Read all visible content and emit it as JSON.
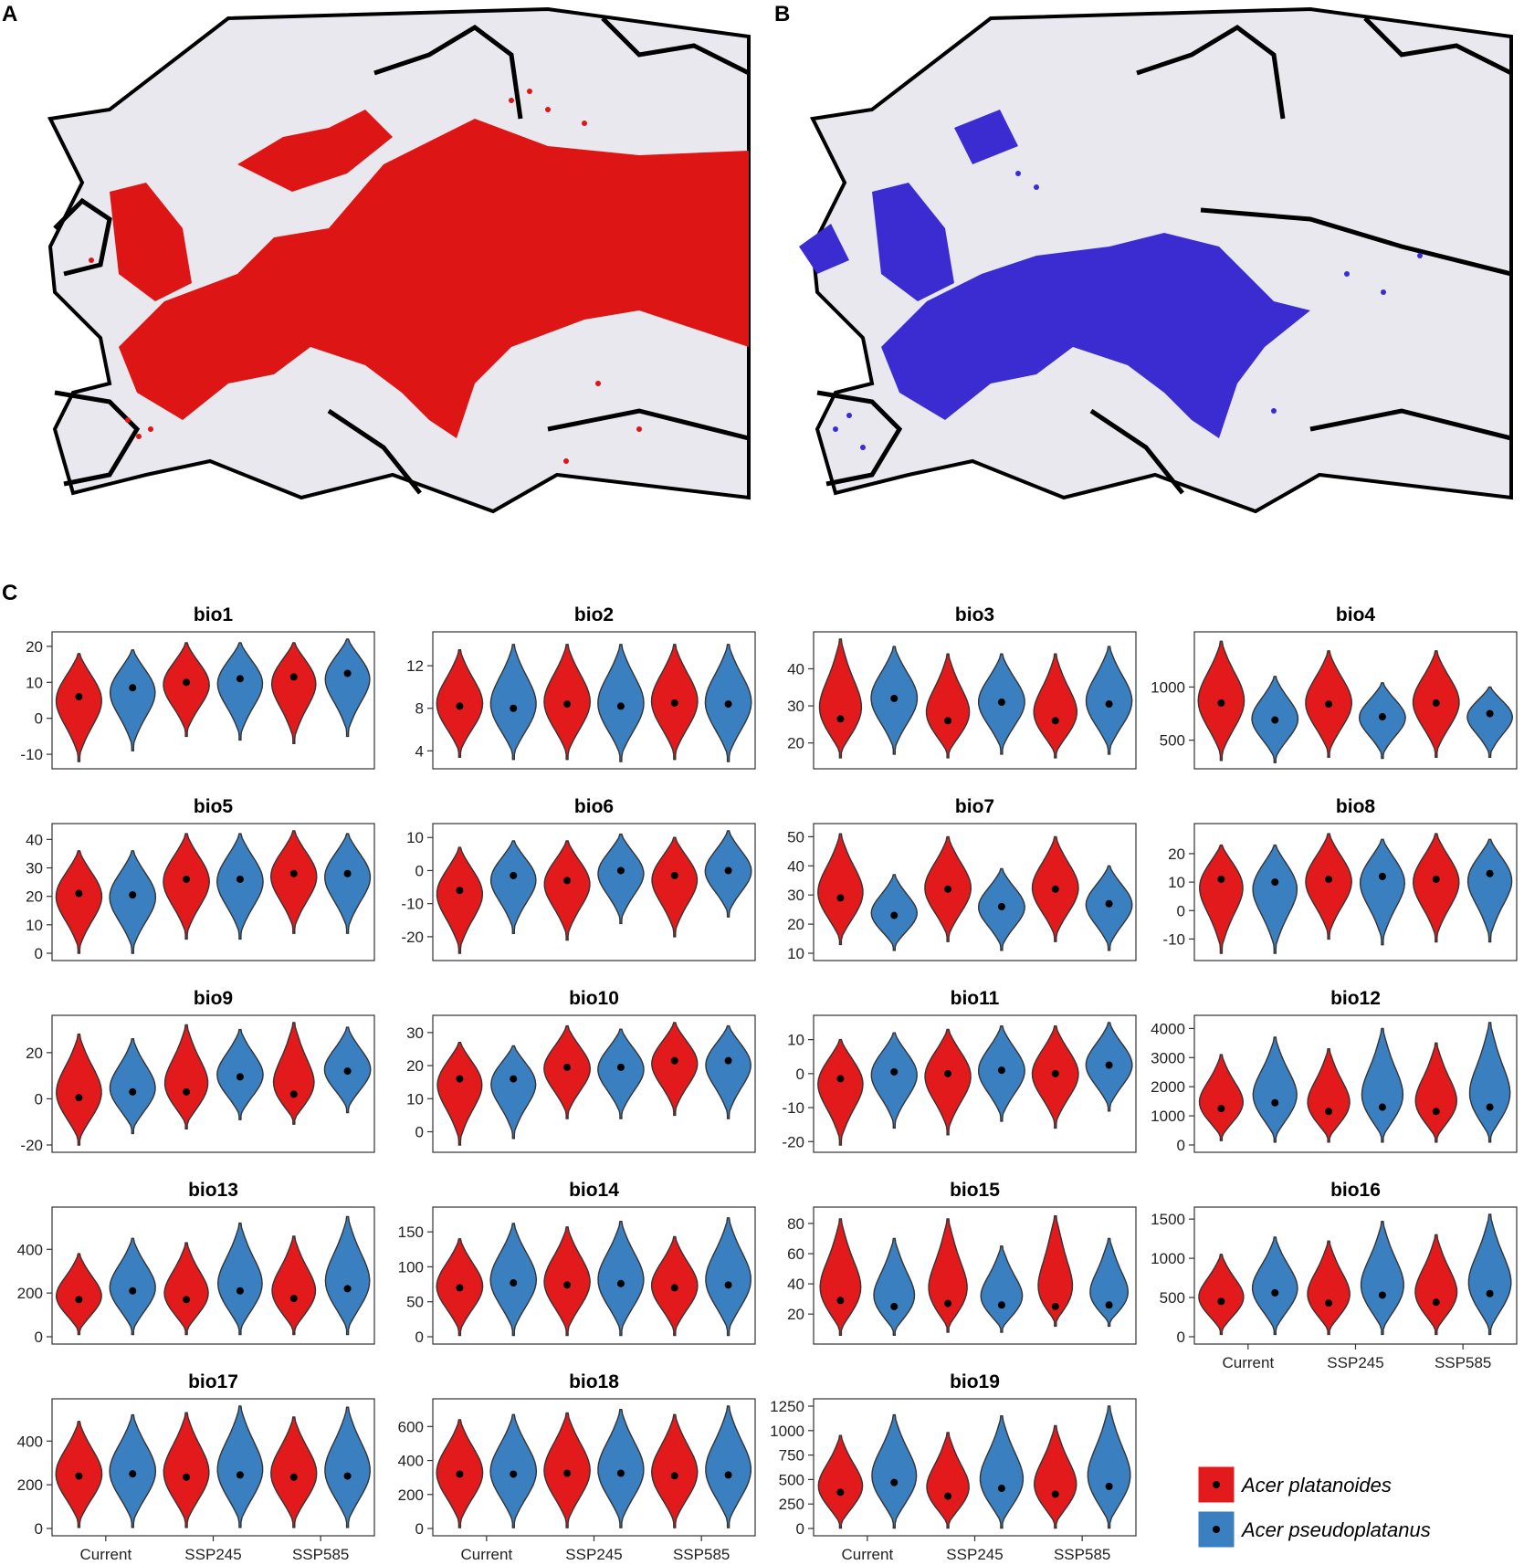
{
  "panels": {
    "a": "A",
    "b": "B",
    "c": "C"
  },
  "maps": [
    {
      "panel": "A",
      "species": "Acer platanoides",
      "fill": "#dd1515",
      "background": "#e9e8ef",
      "border": "#000000"
    },
    {
      "panel": "B",
      "species": "Acer pseudoplatanus",
      "fill": "#3a2cd0",
      "background": "#e9e8ef",
      "border": "#000000"
    }
  ],
  "chart_data": {
    "type": "violin",
    "categories": [
      "Current",
      "SSP245",
      "SSP585"
    ],
    "series": [
      {
        "name": "Acer platanoides",
        "color": "#e31a1c"
      },
      {
        "name": "Acer pseudoplatanus",
        "color": "#3a7fbf"
      }
    ],
    "legend": {
      "position": "bottom-right",
      "entries": [
        "Acer platanoides",
        "Acer pseudoplatanus"
      ]
    },
    "panels": [
      {
        "title": "bio1",
        "ylim": [
          -12,
          22
        ],
        "ticks": [
          -10,
          0,
          10,
          20
        ],
        "platanoides": [
          {
            "median": 6,
            "min": -12,
            "max": 18
          },
          {
            "median": 10,
            "min": -5,
            "max": 21
          },
          {
            "median": 11.5,
            "min": -7,
            "max": 21
          }
        ],
        "pseudoplatanus": [
          {
            "median": 8.5,
            "min": -9,
            "max": 19
          },
          {
            "median": 11,
            "min": -6,
            "max": 21
          },
          {
            "median": 12.5,
            "min": -5,
            "max": 22
          }
        ]
      },
      {
        "title": "bio2",
        "ylim": [
          3,
          14.5
        ],
        "ticks": [
          4,
          8,
          12
        ],
        "platanoides": [
          {
            "median": 8.2,
            "min": 3.4,
            "max": 13.5
          },
          {
            "median": 8.4,
            "min": 3.2,
            "max": 14
          },
          {
            "median": 8.5,
            "min": 3.2,
            "max": 14
          }
        ],
        "pseudoplatanus": [
          {
            "median": 8,
            "min": 3.2,
            "max": 14
          },
          {
            "median": 8.2,
            "min": 3,
            "max": 14
          },
          {
            "median": 8.4,
            "min": 3,
            "max": 14
          }
        ]
      },
      {
        "title": "bio3",
        "ylim": [
          15,
          48
        ],
        "ticks": [
          20,
          30,
          40
        ],
        "platanoides": [
          {
            "median": 26.5,
            "min": 16,
            "max": 48
          },
          {
            "median": 26,
            "min": 16,
            "max": 44
          },
          {
            "median": 26,
            "min": 16,
            "max": 44
          }
        ],
        "pseudoplatanus": [
          {
            "median": 32,
            "min": 17,
            "max": 46
          },
          {
            "median": 31,
            "min": 17,
            "max": 44
          },
          {
            "median": 30.5,
            "min": 17,
            "max": 46
          }
        ]
      },
      {
        "title": "bio4",
        "ylim": [
          300,
          1450
        ],
        "ticks": [
          500,
          1000
        ],
        "platanoides": [
          {
            "median": 850,
            "min": 310,
            "max": 1430
          },
          {
            "median": 840,
            "min": 340,
            "max": 1340
          },
          {
            "median": 850,
            "min": 340,
            "max": 1340
          }
        ],
        "pseudoplatanus": [
          {
            "median": 690,
            "min": 290,
            "max": 1100
          },
          {
            "median": 720,
            "min": 330,
            "max": 1040
          },
          {
            "median": 750,
            "min": 340,
            "max": 1000
          }
        ]
      },
      {
        "title": "bio5",
        "ylim": [
          0,
          43
        ],
        "ticks": [
          0,
          10,
          20,
          30,
          40
        ],
        "platanoides": [
          {
            "median": 21,
            "min": 0,
            "max": 36
          },
          {
            "median": 26,
            "min": 5,
            "max": 42
          },
          {
            "median": 28,
            "min": 7,
            "max": 43
          }
        ],
        "pseudoplatanus": [
          {
            "median": 20.5,
            "min": 0,
            "max": 36
          },
          {
            "median": 26,
            "min": 5,
            "max": 42
          },
          {
            "median": 28,
            "min": 7,
            "max": 42
          }
        ]
      },
      {
        "title": "bio6",
        "ylim": [
          -25,
          12
        ],
        "ticks": [
          -20,
          -10,
          0,
          10
        ],
        "platanoides": [
          {
            "median": -6,
            "min": -25,
            "max": 7
          },
          {
            "median": -3,
            "min": -21,
            "max": 9
          },
          {
            "median": -1.5,
            "min": -20,
            "max": 10
          }
        ],
        "pseudoplatanus": [
          {
            "median": -1.5,
            "min": -19,
            "max": 9
          },
          {
            "median": 0,
            "min": -16,
            "max": 11
          },
          {
            "median": 0,
            "min": -14,
            "max": 12
          }
        ]
      },
      {
        "title": "bio7",
        "ylim": [
          10,
          52
        ],
        "ticks": [
          10,
          20,
          30,
          40,
          50
        ],
        "platanoides": [
          {
            "median": 29,
            "min": 13,
            "max": 51
          },
          {
            "median": 32,
            "min": 14,
            "max": 50
          },
          {
            "median": 32,
            "min": 14,
            "max": 50
          }
        ],
        "pseudoplatanus": [
          {
            "median": 23,
            "min": 11,
            "max": 37
          },
          {
            "median": 26,
            "min": 11,
            "max": 39
          },
          {
            "median": 27,
            "min": 11,
            "max": 40
          }
        ]
      },
      {
        "title": "bio8",
        "ylim": [
          -15,
          28
        ],
        "ticks": [
          -10,
          0,
          10,
          20
        ],
        "platanoides": [
          {
            "median": 11,
            "min": -15,
            "max": 23
          },
          {
            "median": 11,
            "min": -10,
            "max": 27
          },
          {
            "median": 11,
            "min": -11,
            "max": 27
          }
        ],
        "pseudoplatanus": [
          {
            "median": 10,
            "min": -15,
            "max": 23
          },
          {
            "median": 12,
            "min": -12,
            "max": 25
          },
          {
            "median": 13,
            "min": -11,
            "max": 25
          }
        ]
      },
      {
        "title": "bio9",
        "ylim": [
          -20,
          33
        ],
        "ticks": [
          -20,
          0,
          20
        ],
        "platanoides": [
          {
            "median": 0.5,
            "min": -20,
            "max": 28
          },
          {
            "median": 3,
            "min": -13,
            "max": 32
          },
          {
            "median": 2,
            "min": -11,
            "max": 33
          }
        ],
        "pseudoplatanus": [
          {
            "median": 3,
            "min": -15,
            "max": 26
          },
          {
            "median": 9.5,
            "min": -9,
            "max": 30
          },
          {
            "median": 12,
            "min": -6,
            "max": 31
          }
        ]
      },
      {
        "title": "bio10",
        "ylim": [
          -4,
          33
        ],
        "ticks": [
          0,
          10,
          20,
          30
        ],
        "platanoides": [
          {
            "median": 16,
            "min": -4,
            "max": 27
          },
          {
            "median": 19.5,
            "min": 4,
            "max": 32
          },
          {
            "median": 21.5,
            "min": 5,
            "max": 33
          }
        ],
        "pseudoplatanus": [
          {
            "median": 16,
            "min": -2,
            "max": 26
          },
          {
            "median": 19.5,
            "min": 4,
            "max": 31
          },
          {
            "median": 21.5,
            "min": 4,
            "max": 32
          }
        ]
      },
      {
        "title": "bio11",
        "ylim": [
          -21,
          15
        ],
        "ticks": [
          -20,
          -10,
          0,
          10
        ],
        "platanoides": [
          {
            "median": -1.5,
            "min": -21,
            "max": 10
          },
          {
            "median": 0,
            "min": -18,
            "max": 13
          },
          {
            "median": 0,
            "min": -16,
            "max": 14
          }
        ],
        "pseudoplatanus": [
          {
            "median": 0.5,
            "min": -16,
            "max": 12
          },
          {
            "median": 1,
            "min": -14,
            "max": 14
          },
          {
            "median": 2.5,
            "min": -11,
            "max": 15
          }
        ]
      },
      {
        "title": "bio12",
        "ylim": [
          0,
          4200
        ],
        "ticks": [
          0,
          1000,
          2000,
          3000,
          4000
        ],
        "platanoides": [
          {
            "median": 1250,
            "min": 150,
            "max": 3100
          },
          {
            "median": 1150,
            "min": 100,
            "max": 3300
          },
          {
            "median": 1150,
            "min": 100,
            "max": 3500
          }
        ],
        "pseudoplatanus": [
          {
            "median": 1450,
            "min": 100,
            "max": 3700
          },
          {
            "median": 1300,
            "min": 100,
            "max": 4000
          },
          {
            "median": 1300,
            "min": 100,
            "max": 4200
          }
        ]
      },
      {
        "title": "bio13",
        "ylim": [
          0,
          560
        ],
        "ticks": [
          0,
          200,
          400
        ],
        "platanoides": [
          {
            "median": 170,
            "min": 10,
            "max": 380
          },
          {
            "median": 170,
            "min": 10,
            "max": 430
          },
          {
            "median": 175,
            "min": 10,
            "max": 460
          }
        ],
        "pseudoplatanus": [
          {
            "median": 210,
            "min": 10,
            "max": 450
          },
          {
            "median": 210,
            "min": 10,
            "max": 520
          },
          {
            "median": 220,
            "min": 10,
            "max": 550
          }
        ]
      },
      {
        "title": "bio14",
        "ylim": [
          0,
          175
        ],
        "ticks": [
          0,
          50,
          100,
          150
        ],
        "platanoides": [
          {
            "median": 70,
            "min": 2,
            "max": 140
          },
          {
            "median": 74,
            "min": 2,
            "max": 157
          },
          {
            "median": 70,
            "min": 2,
            "max": 143
          }
        ],
        "pseudoplatanus": [
          {
            "median": 77,
            "min": 2,
            "max": 162
          },
          {
            "median": 76,
            "min": 2,
            "max": 165
          },
          {
            "median": 74,
            "min": 2,
            "max": 170
          }
        ]
      },
      {
        "title": "bio15",
        "ylim": [
          5,
          86
        ],
        "ticks": [
          20,
          40,
          60,
          80
        ],
        "platanoides": [
          {
            "median": 29,
            "min": 6,
            "max": 83
          },
          {
            "median": 27,
            "min": 8,
            "max": 83
          },
          {
            "median": 25,
            "min": 12,
            "max": 85
          }
        ],
        "pseudoplatanus": [
          {
            "median": 25,
            "min": 6,
            "max": 70
          },
          {
            "median": 26,
            "min": 8,
            "max": 65
          },
          {
            "median": 26,
            "min": 12,
            "max": 70
          }
        ]
      },
      {
        "title": "bio16",
        "ylim": [
          0,
          1560
        ],
        "ticks": [
          0,
          500,
          1000,
          1500
        ],
        "platanoides": [
          {
            "median": 450,
            "min": 30,
            "max": 1050
          },
          {
            "median": 430,
            "min": 30,
            "max": 1220
          },
          {
            "median": 440,
            "min": 30,
            "max": 1300
          }
        ],
        "pseudoplatanus": [
          {
            "median": 560,
            "min": 30,
            "max": 1270
          },
          {
            "median": 530,
            "min": 30,
            "max": 1470
          },
          {
            "median": 550,
            "min": 30,
            "max": 1560
          }
        ]
      },
      {
        "title": "bio17",
        "ylim": [
          0,
          560
        ],
        "ticks": [
          0,
          200,
          400
        ],
        "platanoides": [
          {
            "median": 240,
            "min": 5,
            "max": 490
          },
          {
            "median": 235,
            "min": 5,
            "max": 530
          },
          {
            "median": 235,
            "min": 5,
            "max": 510
          }
        ],
        "pseudoplatanus": [
          {
            "median": 250,
            "min": 5,
            "max": 520
          },
          {
            "median": 245,
            "min": 5,
            "max": 560
          },
          {
            "median": 240,
            "min": 5,
            "max": 555
          }
        ]
      },
      {
        "title": "bio18",
        "ylim": [
          0,
          720
        ],
        "ticks": [
          0,
          200,
          400,
          600
        ],
        "platanoides": [
          {
            "median": 320,
            "min": 5,
            "max": 640
          },
          {
            "median": 325,
            "min": 5,
            "max": 680
          },
          {
            "median": 310,
            "min": 5,
            "max": 670
          }
        ],
        "pseudoplatanus": [
          {
            "median": 320,
            "min": 5,
            "max": 670
          },
          {
            "median": 325,
            "min": 5,
            "max": 700
          },
          {
            "median": 315,
            "min": 5,
            "max": 720
          }
        ]
      },
      {
        "title": "bio19",
        "ylim": [
          0,
          1250
        ],
        "ticks": [
          0,
          250,
          500,
          750,
          1000,
          1250
        ],
        "platanoides": [
          {
            "median": 370,
            "min": 5,
            "max": 950
          },
          {
            "median": 330,
            "min": 5,
            "max": 980
          },
          {
            "median": 350,
            "min": 5,
            "max": 1050
          }
        ],
        "pseudoplatanus": [
          {
            "median": 470,
            "min": 5,
            "max": 1160
          },
          {
            "median": 410,
            "min": 5,
            "max": 1150
          },
          {
            "median": 430,
            "min": 5,
            "max": 1250
          }
        ]
      }
    ]
  }
}
